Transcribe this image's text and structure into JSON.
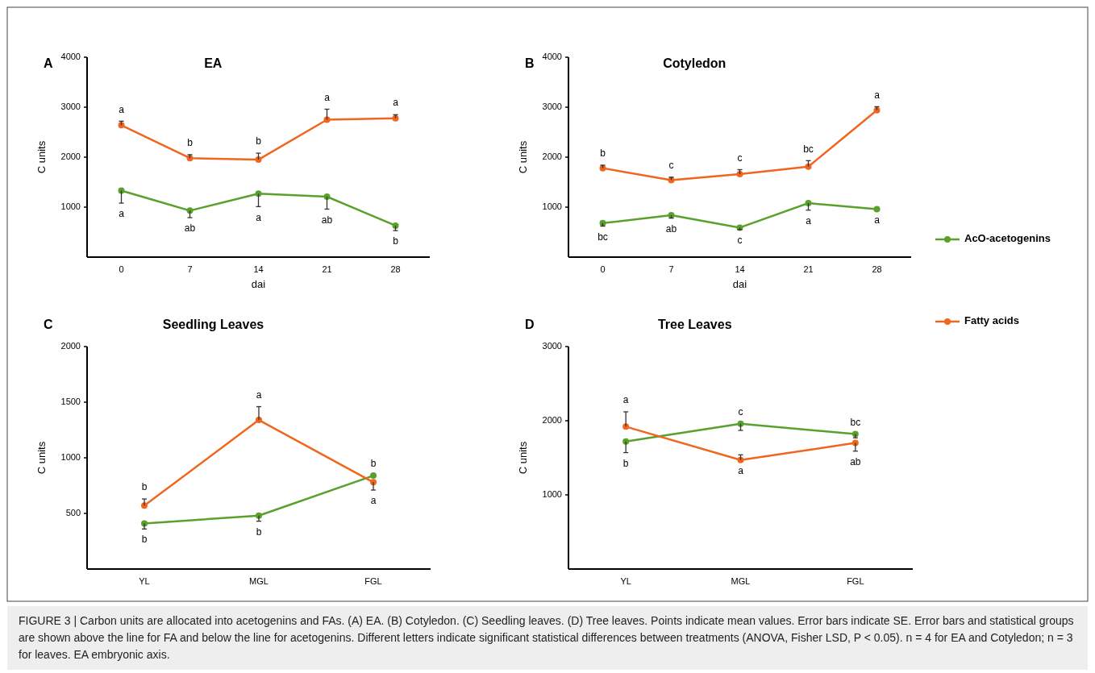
{
  "chart_data": [
    {
      "type": "line",
      "title": "EA",
      "xlabel": "dai",
      "ylabel": "C units",
      "categories": [
        "0",
        "7",
        "14",
        "21",
        "28"
      ],
      "ylim": [
        0,
        4000
      ],
      "yticks": [
        1000,
        2000,
        3000,
        4000
      ],
      "marker": "circle",
      "series": [
        {
          "color": "#5aa02c",
          "values": [
            1330,
            930,
            1270,
            1210,
            630
          ],
          "errors": [
            [
              1080,
              1330
            ],
            [
              790,
              930
            ],
            [
              1010,
              1270
            ],
            [
              960,
              1210
            ],
            [
              530,
              630
            ]
          ]
        },
        {
          "color": "#f0661e",
          "values": [
            2640,
            1980,
            1950,
            2750,
            2780
          ],
          "errors": [
            [
              2640,
              2720
            ],
            [
              1980,
              2050
            ],
            [
              1950,
              2080
            ],
            [
              2750,
              2960
            ],
            [
              2780,
              2850
            ]
          ]
        }
      ],
      "annotations": [
        "A",
        {
          "text": "a",
          "x": "0",
          "y": 2640
        },
        {
          "text": "b",
          "x": "7",
          "y": 1980
        },
        {
          "text": "b",
          "x": "14",
          "y": 1950
        },
        {
          "text": "a",
          "x": "21",
          "y": 2750
        },
        {
          "text": "a",
          "x": "28",
          "y": 2780
        },
        {
          "text": "a",
          "x": "0",
          "y": 1330
        },
        {
          "text": "ab",
          "x": "7",
          "y": 930
        },
        {
          "text": "a",
          "x": "14",
          "y": 1270
        },
        {
          "text": "ab",
          "x": "21",
          "y": 1210
        },
        {
          "text": "b",
          "x": "28",
          "y": 630
        }
      ]
    },
    {
      "type": "line",
      "title": "Cotyledon",
      "xlabel": "dai",
      "ylabel": "C units",
      "categories": [
        "0",
        "7",
        "14",
        "21",
        "28"
      ],
      "ylim": [
        0,
        4000
      ],
      "yticks": [
        1000,
        2000,
        3000,
        4000
      ],
      "marker": "circle",
      "legend": "right",
      "series": [
        {
          "name": "AcO-acetogenins",
          "color": "#5aa02c",
          "values": [
            680,
            840,
            590,
            1080,
            960
          ],
          "errors": [
            [
              620,
              680
            ],
            [
              780,
              840
            ],
            [
              550,
              590
            ],
            [
              940,
              1080
            ],
            null
          ]
        },
        {
          "name": "Fatty acids",
          "color": "#f0661e",
          "values": [
            1780,
            1540,
            1660,
            1810,
            2940
          ],
          "errors": [
            [
              1780,
              1840
            ],
            [
              1540,
              1600
            ],
            [
              1660,
              1750
            ],
            [
              1810,
              1930
            ],
            [
              2940,
              3010
            ]
          ]
        }
      ],
      "annotations": [
        "B",
        {
          "text": "b",
          "x": "0",
          "y": 1780
        },
        {
          "text": "c",
          "x": "7",
          "y": 1540
        },
        {
          "text": "c",
          "x": "14",
          "y": 1660
        },
        {
          "text": "bc",
          "x": "21",
          "y": 1810
        },
        {
          "text": "a",
          "x": "28",
          "y": 2940
        },
        {
          "text": "bc",
          "x": "0",
          "y": 680
        },
        {
          "text": "ab",
          "x": "7",
          "y": 840
        },
        {
          "text": "c",
          "x": "14",
          "y": 590
        },
        {
          "text": "a",
          "x": "21",
          "y": 1080
        },
        {
          "text": "a",
          "x": "28",
          "y": 960
        }
      ]
    },
    {
      "type": "line",
      "title": "Seedling Leaves",
      "ylabel": "C units",
      "categories": [
        "YL",
        "MGL",
        "FGL"
      ],
      "ylim": [
        0,
        2000
      ],
      "yticks": [
        500,
        1000,
        1500,
        2000
      ],
      "marker": "circle",
      "series": [
        {
          "color": "#5aa02c",
          "values": [
            410,
            480,
            840
          ],
          "errors": [
            [
              360,
              410
            ],
            [
              430,
              480
            ],
            null
          ]
        },
        {
          "color": "#f0661e",
          "values": [
            570,
            1340,
            780
          ],
          "errors": [
            [
              570,
              630
            ],
            [
              1340,
              1460
            ],
            [
              710,
              780
            ]
          ]
        }
      ],
      "annotations": [
        "C",
        {
          "text": "b",
          "x": "YL",
          "y": 570
        },
        {
          "text": "b",
          "x": "YL",
          "y": 410
        },
        {
          "text": "a",
          "x": "MGL",
          "y": 1340
        },
        {
          "text": "b",
          "x": "MGL",
          "y": 480
        },
        {
          "text": "b",
          "x": "FGL",
          "y": 840
        },
        {
          "text": "a",
          "x": "FGL",
          "y": 780
        }
      ]
    },
    {
      "type": "line",
      "title": "Tree Leaves",
      "ylabel": "C units",
      "categories": [
        "YL",
        "MGL",
        "FGL"
      ],
      "ylim": [
        0,
        3000
      ],
      "yticks": [
        1000,
        2000,
        3000
      ],
      "marker": "circle",
      "series": [
        {
          "color": "#5aa02c",
          "values": [
            1720,
            1960,
            1820
          ],
          "errors": [
            [
              1570,
              1720
            ],
            [
              1870,
              1960
            ],
            [
              1770,
              1820
            ]
          ]
        },
        {
          "color": "#f0661e",
          "values": [
            1920,
            1470,
            1700
          ],
          "errors": [
            [
              1920,
              2120
            ],
            [
              1470,
              1540
            ],
            [
              1590,
              1700
            ]
          ]
        }
      ],
      "annotations": [
        "D",
        {
          "text": "a",
          "x": "YL",
          "y": 1920
        },
        {
          "text": "b",
          "x": "YL",
          "y": 1720
        },
        {
          "text": "c",
          "x": "MGL",
          "y": 1960
        },
        {
          "text": "a",
          "x": "MGL",
          "y": 1470
        },
        {
          "text": "bc",
          "x": "FGL",
          "y": 1820
        },
        {
          "text": "ab",
          "x": "FGL",
          "y": 1700
        }
      ]
    },
    {
      "type": "other",
      "annotations": [
        "FIGURE 3 | Carbon units are allocated into acetogenins and FAs. (A) EA. (B) Cotyledon. (C) Seedling leaves. (D) Tree leaves. Points indicate mean values. Error bars indicate SE. Error bars and statistical groups are shown above the line for FA and below the line for acetogenins. Different letters indicate significant statistical differences between treatments (ANOVA, Fisher LSD, P < 0.05). n = 4 for EA and Cotyledon; n = 3 for leaves. EA embryonic axis."
      ]
    }
  ]
}
